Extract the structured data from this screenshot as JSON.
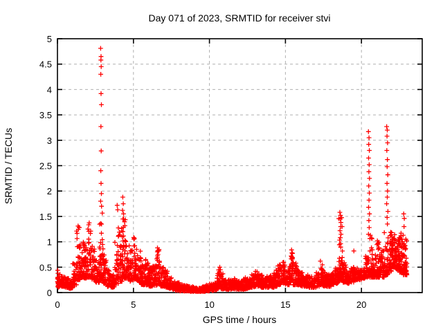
{
  "chart_data": {
    "type": "scatter",
    "title": "Day 071 of 2023, SRMTID for receiver stvi",
    "xlabel": "GPS time / hours",
    "ylabel": "SRMTID / TECUs",
    "xlim": [
      0,
      24
    ],
    "ylim": [
      0,
      5
    ],
    "xticks": [
      0,
      5,
      10,
      15,
      20
    ],
    "yticks": [
      0,
      0.5,
      1,
      1.5,
      2,
      2.5,
      3,
      3.5,
      4,
      4.5,
      5
    ],
    "ytick_labels": [
      "0",
      "0.5",
      "1",
      "1.5",
      "2",
      "2.5",
      "3",
      "3.5",
      "4",
      "4.5",
      "5"
    ],
    "xtick_labels": [
      "0",
      "5",
      "10",
      "15",
      "20"
    ],
    "grid": true,
    "legend": "none",
    "series_name": "SRMTID",
    "marker": {
      "shape": "plus",
      "color": "#ff0000"
    },
    "colors": {
      "marker": "#ff0000",
      "grid": "#b0b0b0",
      "border": "#000000",
      "background": "#ffffff",
      "text": "#000000"
    },
    "peaks": [
      {
        "x": 1.35,
        "y": 1.35
      },
      {
        "x": 2.87,
        "y": 4.81
      },
      {
        "x": 4.3,
        "y": 1.88
      },
      {
        "x": 6.6,
        "y": 0.88
      },
      {
        "x": 10.6,
        "y": 0.5
      },
      {
        "x": 15.4,
        "y": 0.85
      },
      {
        "x": 18.6,
        "y": 1.58
      },
      {
        "x": 20.5,
        "y": 3.17
      },
      {
        "x": 21.7,
        "y": 3.27
      },
      {
        "x": 22.8,
        "y": 1.55
      }
    ],
    "envelope": {
      "x_start": 0,
      "x_step": 0.25,
      "segments": [
        [
          0.1,
          0.4,
          30
        ],
        [
          0.12,
          0.33,
          45
        ],
        [
          0.1,
          0.28,
          45
        ],
        [
          0.08,
          0.22,
          40
        ],
        [
          0.15,
          0.6,
          30
        ],
        [
          0.25,
          1.32,
          45
        ],
        [
          0.3,
          1.05,
          40
        ],
        [
          0.28,
          0.95,
          35
        ],
        [
          0.3,
          1.38,
          40
        ],
        [
          0.25,
          0.95,
          35
        ],
        [
          0.2,
          0.7,
          30
        ],
        [
          0.25,
          1.6,
          50
        ],
        [
          0.18,
          0.75,
          35
        ],
        [
          0.12,
          0.45,
          35
        ],
        [
          0.1,
          0.35,
          40
        ],
        [
          0.18,
          1.05,
          30
        ],
        [
          0.22,
          1.4,
          35
        ],
        [
          0.28,
          1.5,
          50
        ],
        [
          0.28,
          1.05,
          35
        ],
        [
          0.22,
          0.85,
          30
        ],
        [
          0.25,
          1.18,
          40
        ],
        [
          0.2,
          0.85,
          35
        ],
        [
          0.15,
          0.55,
          40
        ],
        [
          0.15,
          0.68,
          40
        ],
        [
          0.12,
          0.5,
          40
        ],
        [
          0.14,
          0.55,
          35
        ],
        [
          0.15,
          0.85,
          35
        ],
        [
          0.12,
          0.5,
          35
        ],
        [
          0.1,
          0.45,
          35
        ],
        [
          0.08,
          0.35,
          35
        ],
        [
          0.06,
          0.25,
          32
        ],
        [
          0.04,
          0.2,
          32
        ],
        [
          0.03,
          0.16,
          32
        ],
        [
          0.03,
          0.14,
          32
        ],
        [
          0.03,
          0.13,
          32
        ],
        [
          0.02,
          0.12,
          32
        ],
        [
          0.02,
          0.1,
          32
        ],
        [
          0.02,
          0.09,
          32
        ],
        [
          0.02,
          0.12,
          32
        ],
        [
          0.03,
          0.15,
          32
        ],
        [
          0.04,
          0.18,
          32
        ],
        [
          0.05,
          0.22,
          32
        ],
        [
          0.07,
          0.48,
          35
        ],
        [
          0.07,
          0.38,
          35
        ],
        [
          0.06,
          0.25,
          32
        ],
        [
          0.06,
          0.28,
          32
        ],
        [
          0.07,
          0.3,
          32
        ],
        [
          0.06,
          0.25,
          32
        ],
        [
          0.06,
          0.25,
          32
        ],
        [
          0.07,
          0.3,
          32
        ],
        [
          0.08,
          0.28,
          32
        ],
        [
          0.1,
          0.38,
          32
        ],
        [
          0.12,
          0.42,
          32
        ],
        [
          0.1,
          0.35,
          32
        ],
        [
          0.1,
          0.3,
          32
        ],
        [
          0.1,
          0.32,
          32
        ],
        [
          0.1,
          0.35,
          32
        ],
        [
          0.12,
          0.45,
          32
        ],
        [
          0.15,
          0.55,
          32
        ],
        [
          0.18,
          0.62,
          32
        ],
        [
          0.15,
          0.48,
          32
        ],
        [
          0.2,
          0.8,
          38
        ],
        [
          0.15,
          0.6,
          32
        ],
        [
          0.15,
          0.45,
          32
        ],
        [
          0.12,
          0.4,
          32
        ],
        [
          0.12,
          0.35,
          32
        ],
        [
          0.1,
          0.32,
          32
        ],
        [
          0.1,
          0.32,
          32
        ],
        [
          0.12,
          0.4,
          32
        ],
        [
          0.14,
          0.58,
          32
        ],
        [
          0.12,
          0.4,
          32
        ],
        [
          0.12,
          0.38,
          32
        ],
        [
          0.15,
          0.42,
          32
        ],
        [
          0.18,
          0.5,
          32
        ],
        [
          0.25,
          1.5,
          55
        ],
        [
          0.2,
          0.6,
          32
        ],
        [
          0.18,
          0.45,
          32
        ],
        [
          0.2,
          0.5,
          32
        ],
        [
          0.25,
          0.48,
          32
        ],
        [
          0.25,
          0.45,
          32
        ],
        [
          0.28,
          0.5,
          32
        ],
        [
          0.3,
          0.72,
          34
        ],
        [
          0.3,
          1.15,
          40
        ],
        [
          0.3,
          0.8,
          34
        ],
        [
          0.3,
          1.05,
          40
        ],
        [
          0.3,
          0.85,
          34
        ],
        [
          0.35,
          1.25,
          40
        ],
        [
          0.42,
          1.2,
          40
        ],
        [
          0.5,
          1.15,
          48
        ],
        [
          0.45,
          1.1,
          48
        ],
        [
          0.4,
          1.18,
          48
        ],
        [
          0.35,
          1.12,
          48
        ]
      ]
    },
    "extra_points": [
      [
        0.02,
        0.44
      ],
      [
        0.03,
        0.38
      ],
      [
        0.01,
        0.3
      ],
      [
        2.84,
        4.81
      ],
      [
        2.87,
        4.65
      ],
      [
        2.86,
        4.58
      ],
      [
        2.88,
        4.45
      ],
      [
        2.85,
        4.3
      ],
      [
        2.87,
        3.92
      ],
      [
        2.89,
        3.7
      ],
      [
        2.86,
        3.27
      ],
      [
        2.88,
        2.79
      ],
      [
        2.85,
        2.4
      ],
      [
        2.87,
        2.15
      ],
      [
        2.89,
        1.95
      ],
      [
        2.84,
        1.8
      ],
      [
        2.9,
        1.7
      ],
      [
        3.93,
        1.72
      ],
      [
        3.96,
        1.63
      ],
      [
        4.3,
        1.88
      ],
      [
        4.33,
        1.75
      ],
      [
        4.28,
        1.62
      ],
      [
        4.35,
        1.55
      ],
      [
        4.31,
        1.45
      ],
      [
        6.58,
        0.88
      ],
      [
        6.62,
        0.82
      ],
      [
        10.68,
        0.5
      ],
      [
        10.72,
        0.45
      ],
      [
        15.4,
        0.84
      ],
      [
        15.43,
        0.78
      ],
      [
        15.38,
        0.72
      ],
      [
        17.3,
        0.62
      ],
      [
        18.58,
        1.58
      ],
      [
        18.62,
        1.52
      ],
      [
        18.6,
        1.45
      ],
      [
        18.65,
        1.38
      ],
      [
        18.63,
        1.3
      ],
      [
        18.59,
        1.22
      ],
      [
        18.66,
        1.15
      ],
      [
        18.61,
        1.08
      ],
      [
        19.5,
        0.82
      ],
      [
        20.46,
        3.17
      ],
      [
        20.5,
        3.05
      ],
      [
        20.48,
        2.92
      ],
      [
        20.52,
        2.8
      ],
      [
        20.47,
        2.65
      ],
      [
        20.51,
        2.52
      ],
      [
        20.49,
        2.38
      ],
      [
        20.53,
        2.25
      ],
      [
        20.48,
        2.1
      ],
      [
        20.52,
        1.96
      ],
      [
        20.5,
        1.82
      ],
      [
        20.47,
        1.68
      ],
      [
        20.53,
        1.55
      ],
      [
        20.49,
        1.42
      ],
      [
        20.51,
        1.28
      ],
      [
        20.46,
        1.15
      ],
      [
        21.66,
        3.27
      ],
      [
        21.7,
        3.2
      ],
      [
        21.68,
        3.08
      ],
      [
        21.72,
        2.95
      ],
      [
        21.67,
        2.8
      ],
      [
        21.71,
        2.62
      ],
      [
        21.69,
        2.48
      ],
      [
        21.73,
        2.32
      ],
      [
        21.68,
        2.15
      ],
      [
        21.72,
        2.0
      ],
      [
        21.7,
        1.88
      ],
      [
        21.66,
        1.75
      ],
      [
        21.74,
        1.6
      ],
      [
        21.69,
        1.48
      ],
      [
        21.71,
        1.35
      ],
      [
        21.05,
        1.02
      ],
      [
        21.1,
        0.95
      ],
      [
        22.78,
        1.55
      ],
      [
        22.82,
        1.46
      ],
      [
        22.8,
        1.3
      ]
    ]
  }
}
